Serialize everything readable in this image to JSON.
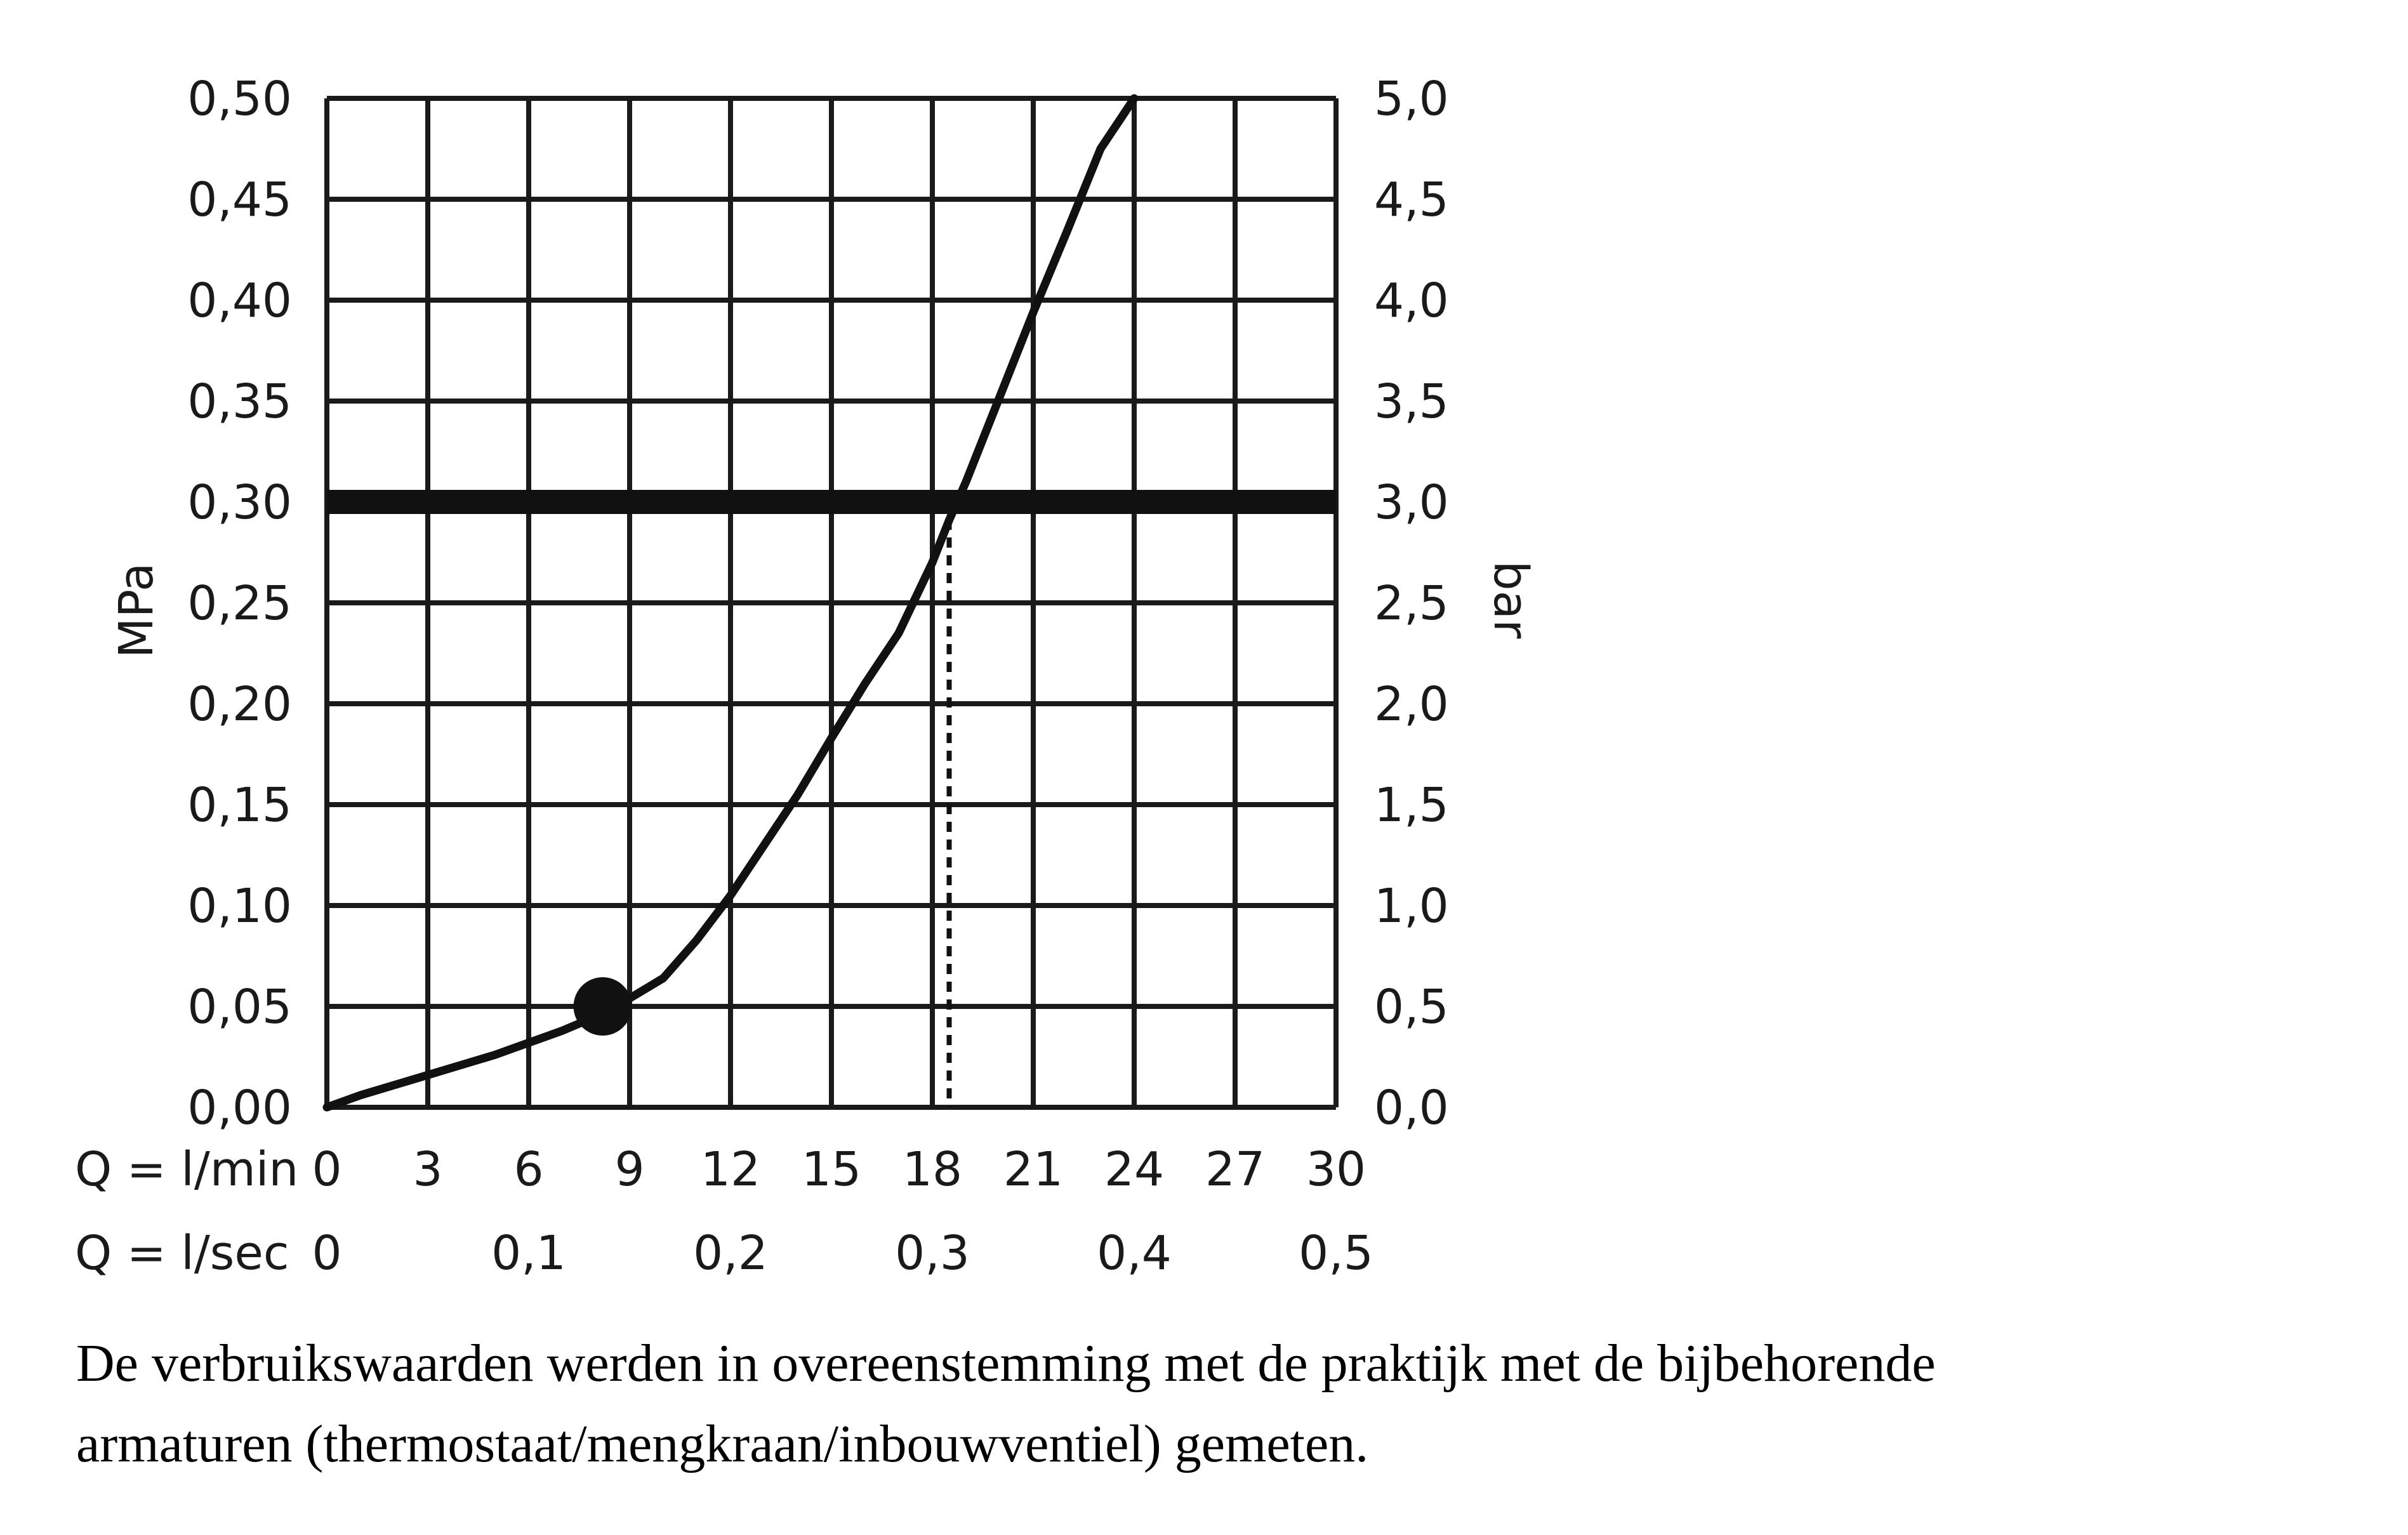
{
  "chart_data": {
    "type": "line",
    "y_left": {
      "label": "MPa",
      "range": [
        0,
        0.5
      ],
      "ticks": [
        "0,00",
        "0,05",
        "0,10",
        "0,15",
        "0,20",
        "0,25",
        "0,30",
        "0,35",
        "0,40",
        "0,45",
        "0,50"
      ]
    },
    "y_right": {
      "label": "bar",
      "range": [
        0,
        5
      ],
      "ticks": [
        "0,0",
        "0,5",
        "1,0",
        "1,5",
        "2,0",
        "2,5",
        "3,0",
        "3,5",
        "4,0",
        "4,5",
        "5,0"
      ]
    },
    "x_lmin": {
      "label": "Q = l/min",
      "range": [
        0,
        30
      ],
      "ticks": [
        "0",
        "3",
        "6",
        "9",
        "12",
        "15",
        "18",
        "21",
        "24",
        "27",
        "30"
      ]
    },
    "x_lsec": {
      "label": "Q = l/sec",
      "range": [
        0,
        0.5
      ],
      "ticks": [
        "0",
        "0,1",
        "0,2",
        "0,3",
        "0,4",
        "0,5"
      ]
    },
    "grid": true,
    "series": [
      {
        "x": [
          0,
          1,
          2,
          3,
          4,
          5,
          6,
          7,
          8,
          8.5,
          9,
          10,
          11,
          12,
          13,
          14,
          15,
          16,
          17,
          18,
          18.5,
          19,
          20,
          21,
          22,
          23,
          24
        ],
        "y": [
          0,
          0.006,
          0.011,
          0.016,
          0.021,
          0.026,
          0.032,
          0.038,
          0.045,
          0.049,
          0.054,
          0.064,
          0.083,
          0.105,
          0.13,
          0.155,
          0.183,
          0.21,
          0.235,
          0.27,
          0.291,
          0.31,
          0.352,
          0.394,
          0.434,
          0.475,
          0.5
        ]
      }
    ],
    "reference_line": {
      "y": 0.3
    },
    "operating_point": {
      "x": 8.2,
      "y": 0.05
    },
    "intersection_marker": {
      "x": 18.5,
      "y": 0.3
    }
  },
  "caption": {
    "line1": "De verbruikswaarden werden in overeenstemming met de praktijk met de bijbehorende",
    "line2": "armaturen (thermostaat/mengkraan/inbouwventiel) gemeten."
  }
}
